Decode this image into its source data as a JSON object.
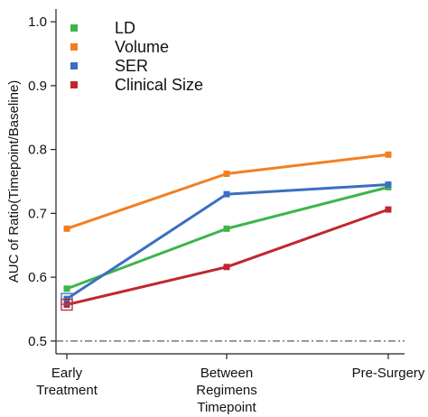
{
  "chart_data": {
    "type": "line",
    "ylabel": "AUC of Ratio(Timepoint/Baseline)",
    "xlabel": "",
    "categories": [
      "Early Treatment",
      "Between Regimens Timepoint",
      "Pre-Surgery"
    ],
    "category_lines": [
      [
        "Early",
        "Treatment"
      ],
      [
        "Between",
        "Regimens",
        "Timepoint"
      ],
      [
        "Pre-Surgery"
      ]
    ],
    "ylim": [
      0.48,
      1.02
    ],
    "yticks": [
      "0.5",
      "0.6",
      "0.7",
      "0.8",
      "0.9",
      "1.0"
    ],
    "reference_line": {
      "y": 0.5,
      "style": "dash-dot"
    },
    "legend_position": "top-left",
    "grid": false,
    "series": [
      {
        "name": "LD",
        "color": "#3cb54a",
        "values": [
          0.582,
          0.676,
          0.741
        ]
      },
      {
        "name": "Volume",
        "color": "#f47f20",
        "values": [
          0.676,
          0.762,
          0.792
        ]
      },
      {
        "name": "SER",
        "color": "#3a6fc1",
        "values": [
          0.566,
          0.73,
          0.745
        ]
      },
      {
        "name": "Clinical Size",
        "color": "#c0272d",
        "values": [
          0.557,
          0.616,
          0.706
        ]
      }
    ],
    "highlight_markers": [
      {
        "series": "SER",
        "category": "Early Treatment"
      },
      {
        "series": "Clinical Size",
        "category": "Early Treatment"
      }
    ]
  }
}
